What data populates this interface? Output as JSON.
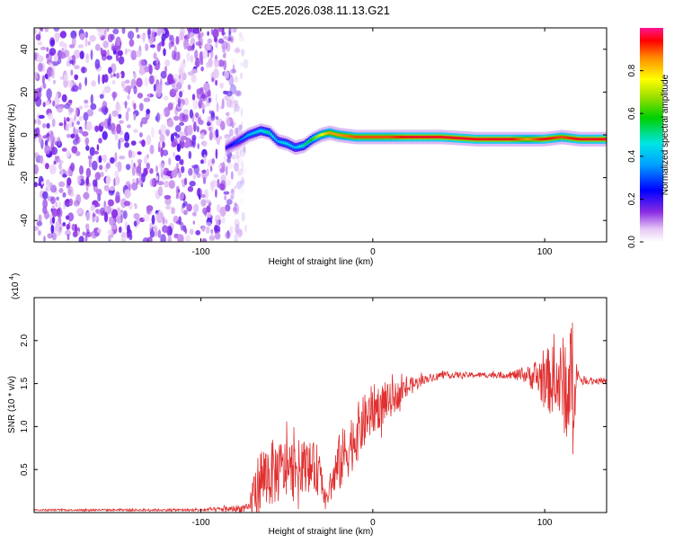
{
  "title": "C2E5.2026.038.11.13.G21",
  "chart_data": [
    {
      "type": "heatmap",
      "name": "spectrogram",
      "xlabel": "Height of straight line (km)",
      "ylabel": "Frequency (Hz)",
      "xlim": [
        -197,
        136
      ],
      "ylim": [
        -50,
        50
      ],
      "xticks": [
        -100,
        0,
        100
      ],
      "yticks": [
        -40,
        -20,
        0,
        20,
        40
      ],
      "noise_region_x": [
        -197,
        -78
      ],
      "signal_track": {
        "x": [
          -85,
          -78,
          -72,
          -65,
          -60,
          -55,
          -50,
          -45,
          -40,
          -35,
          -30,
          -25,
          -20,
          -10,
          0,
          10,
          20,
          40,
          60,
          80,
          90,
          100,
          110,
          120,
          136
        ],
        "frequency": [
          -6,
          -3,
          0,
          2,
          1,
          -3,
          -4,
          -6,
          -5,
          -2,
          0,
          1,
          0,
          -1,
          -1,
          -1,
          -1,
          -1,
          -2,
          -2,
          -2,
          -2,
          -1,
          -2,
          -2
        ],
        "amplitude": [
          0.2,
          0.3,
          0.4,
          0.45,
          0.5,
          0.4,
          0.45,
          0.4,
          0.5,
          0.6,
          0.75,
          0.85,
          0.85,
          0.9,
          0.9,
          0.9,
          0.95,
          0.95,
          0.95,
          0.95,
          0.85,
          0.95,
          0.9,
          0.95,
          0.95
        ]
      },
      "colorbar": {
        "label": "Normalized spectral amplitude",
        "range": [
          0.0,
          1.0
        ],
        "ticks": [
          0.0,
          0.2,
          0.4,
          0.6,
          0.8
        ],
        "tick_labels": [
          "0.0",
          "0.2",
          "0.4",
          "0.6",
          "0.8"
        ]
      }
    },
    {
      "type": "line",
      "name": "snr",
      "xlabel": "Height of straight line (km)",
      "ylabel": "SNR (10 * v/v)",
      "scale_label": "(x10",
      "scale_exponent": "4",
      "xlim": [
        -197,
        136
      ],
      "ylim": [
        0,
        2.5
      ],
      "xticks": [
        -100,
        0,
        100
      ],
      "yticks": [
        0.5,
        1.0,
        1.5,
        2.0
      ],
      "ytick_labels": [
        "0.5",
        "1.0",
        "1.5",
        "2.0"
      ],
      "color": "#e03030",
      "envelope": {
        "x": [
          -197,
          -100,
          -72,
          -70,
          -65,
          -60,
          -50,
          -40,
          -32,
          -27,
          -20,
          -10,
          0,
          10,
          20,
          30,
          40,
          60,
          80,
          90,
          100,
          110,
          115,
          120,
          136
        ],
        "mean": [
          0.03,
          0.03,
          0.05,
          0.2,
          0.4,
          0.45,
          0.5,
          0.55,
          0.5,
          0.15,
          0.55,
          0.9,
          1.2,
          1.3,
          1.45,
          1.55,
          1.6,
          1.6,
          1.6,
          1.6,
          1.55,
          1.5,
          1.55,
          1.55,
          1.52
        ],
        "amp": [
          0.01,
          0.015,
          0.05,
          0.25,
          0.4,
          0.4,
          0.35,
          0.3,
          0.3,
          0.08,
          0.35,
          0.35,
          0.3,
          0.2,
          0.12,
          0.05,
          0.04,
          0.03,
          0.04,
          0.1,
          0.35,
          0.5,
          0.9,
          0.05,
          0.03
        ]
      }
    }
  ]
}
